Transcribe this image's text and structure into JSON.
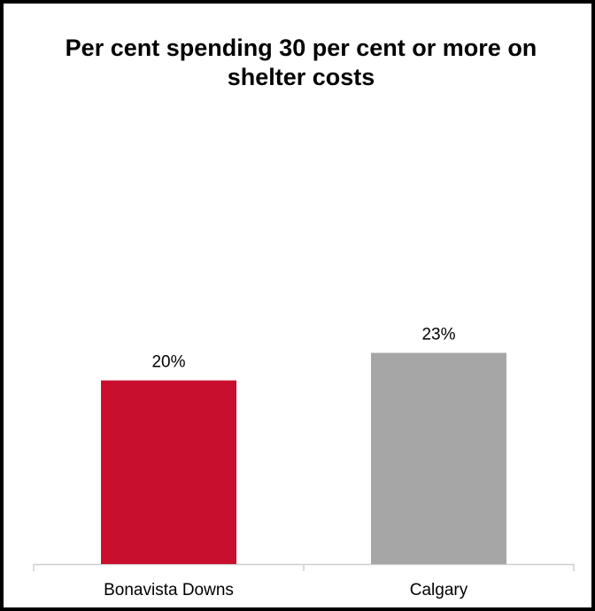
{
  "chart_data": {
    "type": "bar",
    "title": "Per cent spending 30 per cent or more on shelter costs",
    "categories": [
      "Bonavista Downs",
      "Calgary"
    ],
    "values": [
      20,
      23
    ],
    "data_labels": [
      "20%",
      "23%"
    ],
    "colors": [
      "#c8102e",
      "#a6a6a6"
    ],
    "ylim": [
      0,
      40
    ],
    "grid": false,
    "legend": "none",
    "xlabel": "",
    "ylabel": ""
  }
}
